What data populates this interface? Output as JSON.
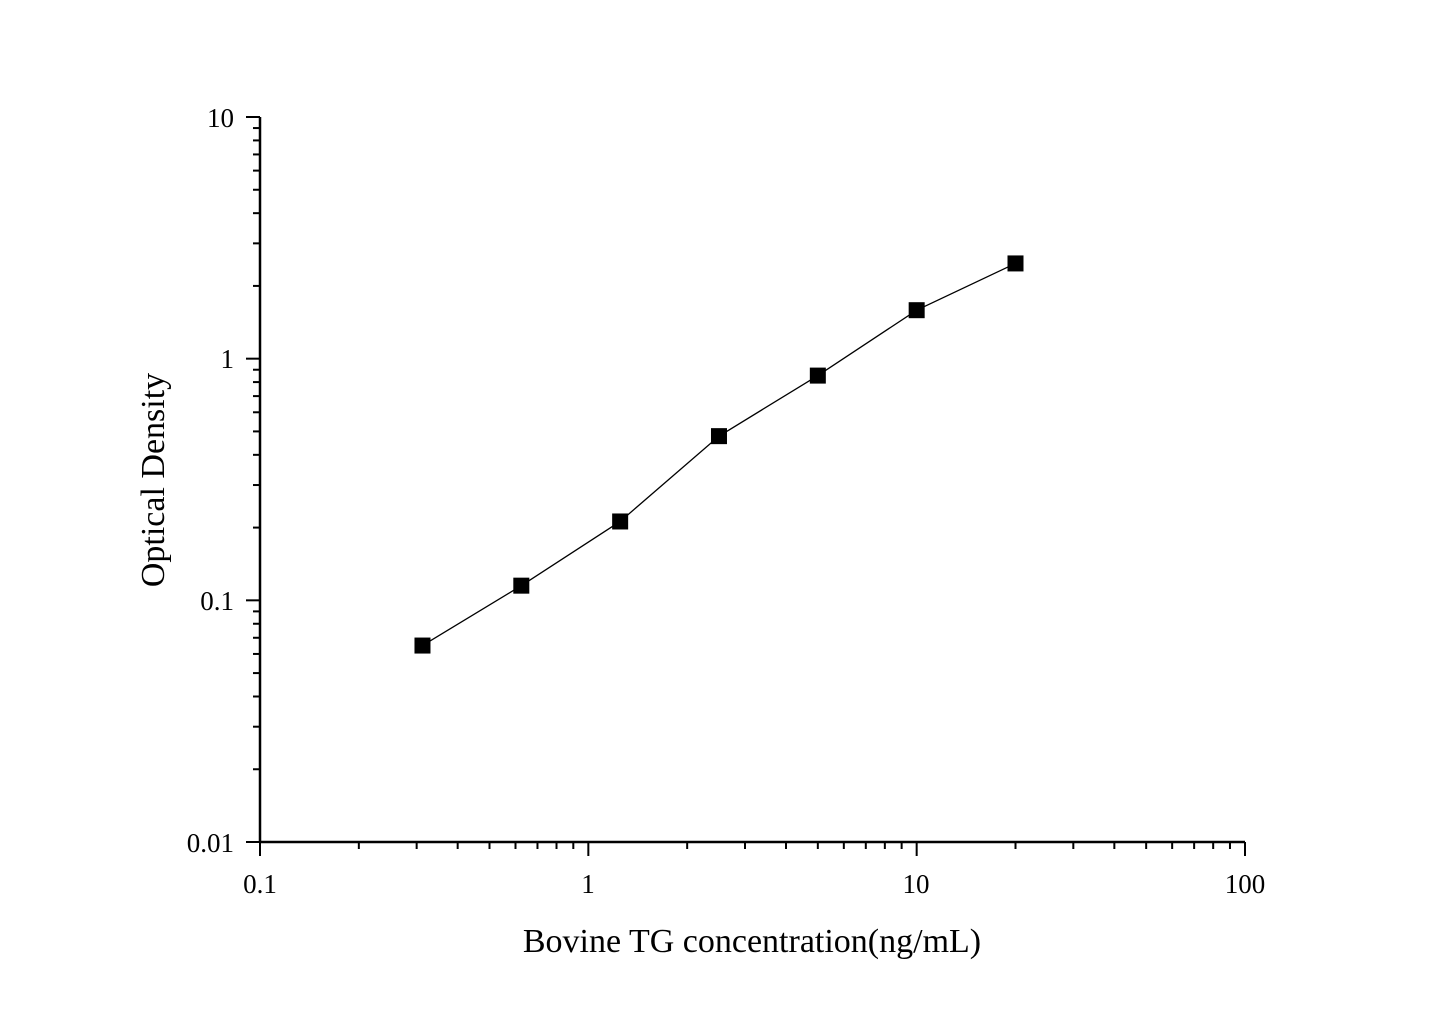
{
  "chart_data": {
    "type": "scatter",
    "title": "",
    "xlabel": "Bovine TG concentration(ng/mL)",
    "ylabel": "Optical Density",
    "xscale": "log",
    "yscale": "log",
    "xlim": [
      0.1,
      100
    ],
    "ylim": [
      0.01,
      10
    ],
    "x_ticks": [
      "0.1",
      "1",
      "10",
      "100"
    ],
    "y_ticks": [
      "0.01",
      "0.1",
      "1",
      "10"
    ],
    "grid": false,
    "legend": "none",
    "marker": "square",
    "connected": true,
    "marker_color": "#000000",
    "line_color": "#000000",
    "series": [
      {
        "x": [
          0.3125,
          0.625,
          1.25,
          2.5,
          5,
          10,
          20
        ],
        "y": [
          0.065,
          0.115,
          0.212,
          0.478,
          0.851,
          1.587,
          2.478
        ]
      }
    ]
  }
}
